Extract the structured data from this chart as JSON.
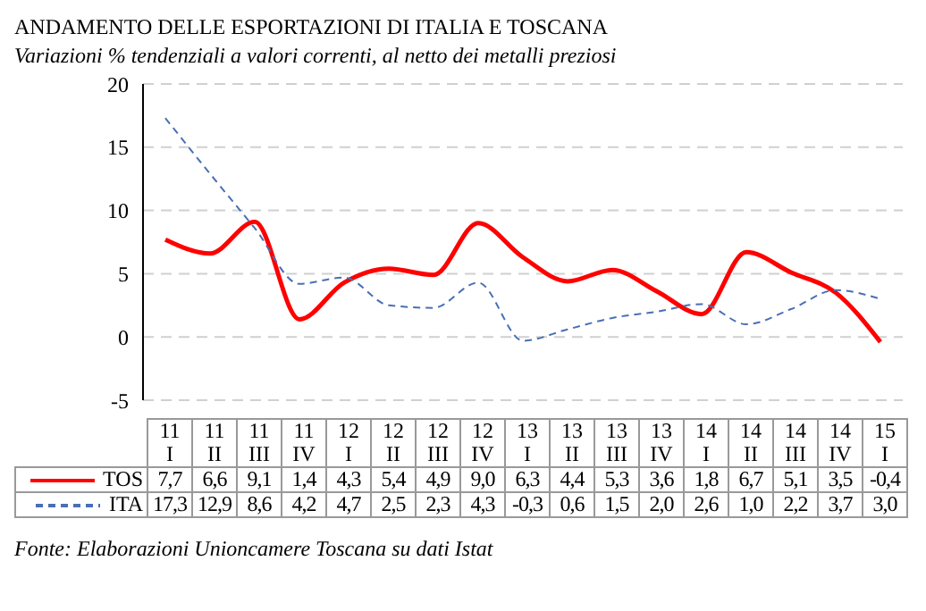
{
  "chart_data": {
    "type": "line",
    "title": "ANDAMENTO DELLE ESPORTAZIONI DI ITALIA E TOSCANA",
    "subtitle": "Variazioni % tendenziali a valori correnti, al netto dei metalli preziosi",
    "categories": [
      "11 I",
      "11 II",
      "11 III",
      "11 IV",
      "12 I",
      "12 II",
      "12 III",
      "12 IV",
      "13 I",
      "13 II",
      "13 III",
      "13 IV",
      "14 I",
      "14 II",
      "14 III",
      "14 IV",
      "15 I"
    ],
    "series": [
      {
        "name": "TOS",
        "color": "#ff0000",
        "line_style": "solid",
        "values": [
          7.7,
          6.6,
          9.1,
          1.4,
          4.3,
          5.4,
          4.9,
          9.0,
          6.3,
          4.4,
          5.3,
          3.6,
          1.8,
          6.7,
          5.1,
          3.5,
          -0.4
        ],
        "value_labels": [
          "7,7",
          "6,6",
          "9,1",
          "1,4",
          "4,3",
          "5,4",
          "4,9",
          "9,0",
          "6,3",
          "4,4",
          "5,3",
          "3,6",
          "1,8",
          "6,7",
          "5,1",
          "3,5",
          "-0,4"
        ]
      },
      {
        "name": "ITA",
        "color": "#4a6fb5",
        "line_style": "dashed",
        "values": [
          17.3,
          12.9,
          8.6,
          4.2,
          4.7,
          2.5,
          2.3,
          4.3,
          -0.3,
          0.6,
          1.5,
          2.0,
          2.6,
          1.0,
          2.2,
          3.7,
          3.0
        ],
        "value_labels": [
          "17,3",
          "12,9",
          "8,6",
          "4,2",
          "4,7",
          "2,5",
          "2,3",
          "4,3",
          "-0,3",
          "0,6",
          "1,5",
          "2,0",
          "2,6",
          "1,0",
          "2,2",
          "3,7",
          "3,0"
        ]
      }
    ],
    "ylim": [
      -5,
      20
    ],
    "yticks": [
      -5,
      0,
      5,
      10,
      15,
      20
    ],
    "grid": "y",
    "legend": "bottom",
    "marker": "none",
    "annotations": [
      "Fonte: Elaborazioni Unioncamere Toscana su dati Istat"
    ]
  }
}
